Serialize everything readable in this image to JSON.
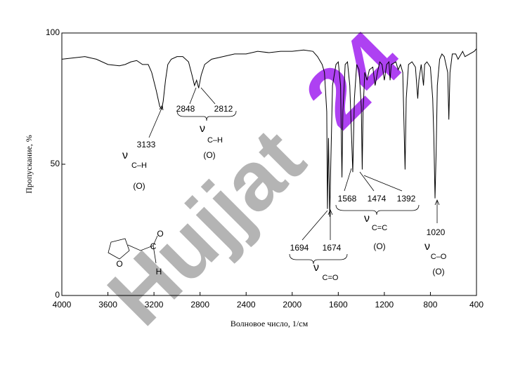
{
  "chart_data": {
    "type": "line",
    "xlabel": "Волновое число, 1/см",
    "ylabel": "Пропускание, %",
    "xlim": [
      4000,
      400
    ],
    "ylim": [
      0,
      100
    ],
    "xticks": [
      4000,
      3600,
      3200,
      2800,
      2400,
      2000,
      1600,
      1200,
      800,
      400
    ],
    "yticks": [
      0,
      50,
      100
    ],
    "color": "#000000",
    "x": [
      4000,
      3900,
      3800,
      3700,
      3600,
      3500,
      3450,
      3400,
      3350,
      3300,
      3250,
      3220,
      3180,
      3150,
      3133,
      3120,
      3100,
      3080,
      3050,
      3000,
      2950,
      2900,
      2870,
      2848,
      2830,
      2812,
      2790,
      2760,
      2700,
      2600,
      2500,
      2400,
      2300,
      2200,
      2100,
      2000,
      1900,
      1820,
      1780,
      1740,
      1720,
      1700,
      1694,
      1685,
      1674,
      1665,
      1650,
      1620,
      1600,
      1580,
      1568,
      1560,
      1540,
      1520,
      1500,
      1474,
      1460,
      1440,
      1420,
      1400,
      1392,
      1385,
      1370,
      1350,
      1330,
      1300,
      1280,
      1260,
      1240,
      1220,
      1200,
      1180,
      1160,
      1150,
      1140,
      1100,
      1080,
      1060,
      1040,
      1020,
      1010,
      990,
      960,
      930,
      910,
      900,
      880,
      860,
      850,
      830,
      800,
      780,
      770,
      760,
      750,
      740,
      720,
      700,
      680,
      650,
      640,
      630,
      610,
      580,
      560,
      520,
      500,
      460,
      420,
      400
    ],
    "values": [
      90,
      90.5,
      91,
      90,
      88,
      87.5,
      88,
      89,
      89.5,
      88,
      88,
      85,
      78,
      72,
      71,
      74,
      82,
      88,
      90,
      91,
      91,
      89,
      84,
      80,
      82,
      79,
      84,
      88,
      90,
      91,
      92,
      92,
      93,
      92.5,
      93,
      93,
      93.5,
      93,
      91,
      88,
      85,
      70,
      33,
      60,
      30,
      50,
      80,
      88,
      89,
      80,
      45,
      70,
      88,
      89,
      80,
      47,
      75,
      88,
      86,
      72,
      48,
      70,
      85,
      82,
      86,
      87,
      80,
      85,
      89,
      88,
      82,
      88,
      89,
      82,
      88,
      89,
      86,
      88,
      85,
      48,
      75,
      88,
      89,
      87,
      75,
      82,
      88,
      80,
      88,
      89,
      87,
      75,
      60,
      37,
      55,
      80,
      90,
      92,
      91,
      85,
      67,
      85,
      92,
      92,
      90,
      93,
      91,
      92,
      93,
      94
    ],
    "annotations": [
      "3133",
      "ν",
      "C–H",
      "(O)",
      "2848",
      "2812",
      "ν",
      "C–H",
      "(O)",
      "1694",
      "1674",
      "ν",
      "C=O",
      "1568",
      "1474",
      "1392",
      "ν",
      "C=C",
      "(O)",
      "1020",
      "ν",
      "C–O",
      "(O)"
    ],
    "molecule": [
      "O",
      "C",
      "O",
      "H"
    ],
    "watermark": [
      "Hujjat",
      "24"
    ]
  }
}
